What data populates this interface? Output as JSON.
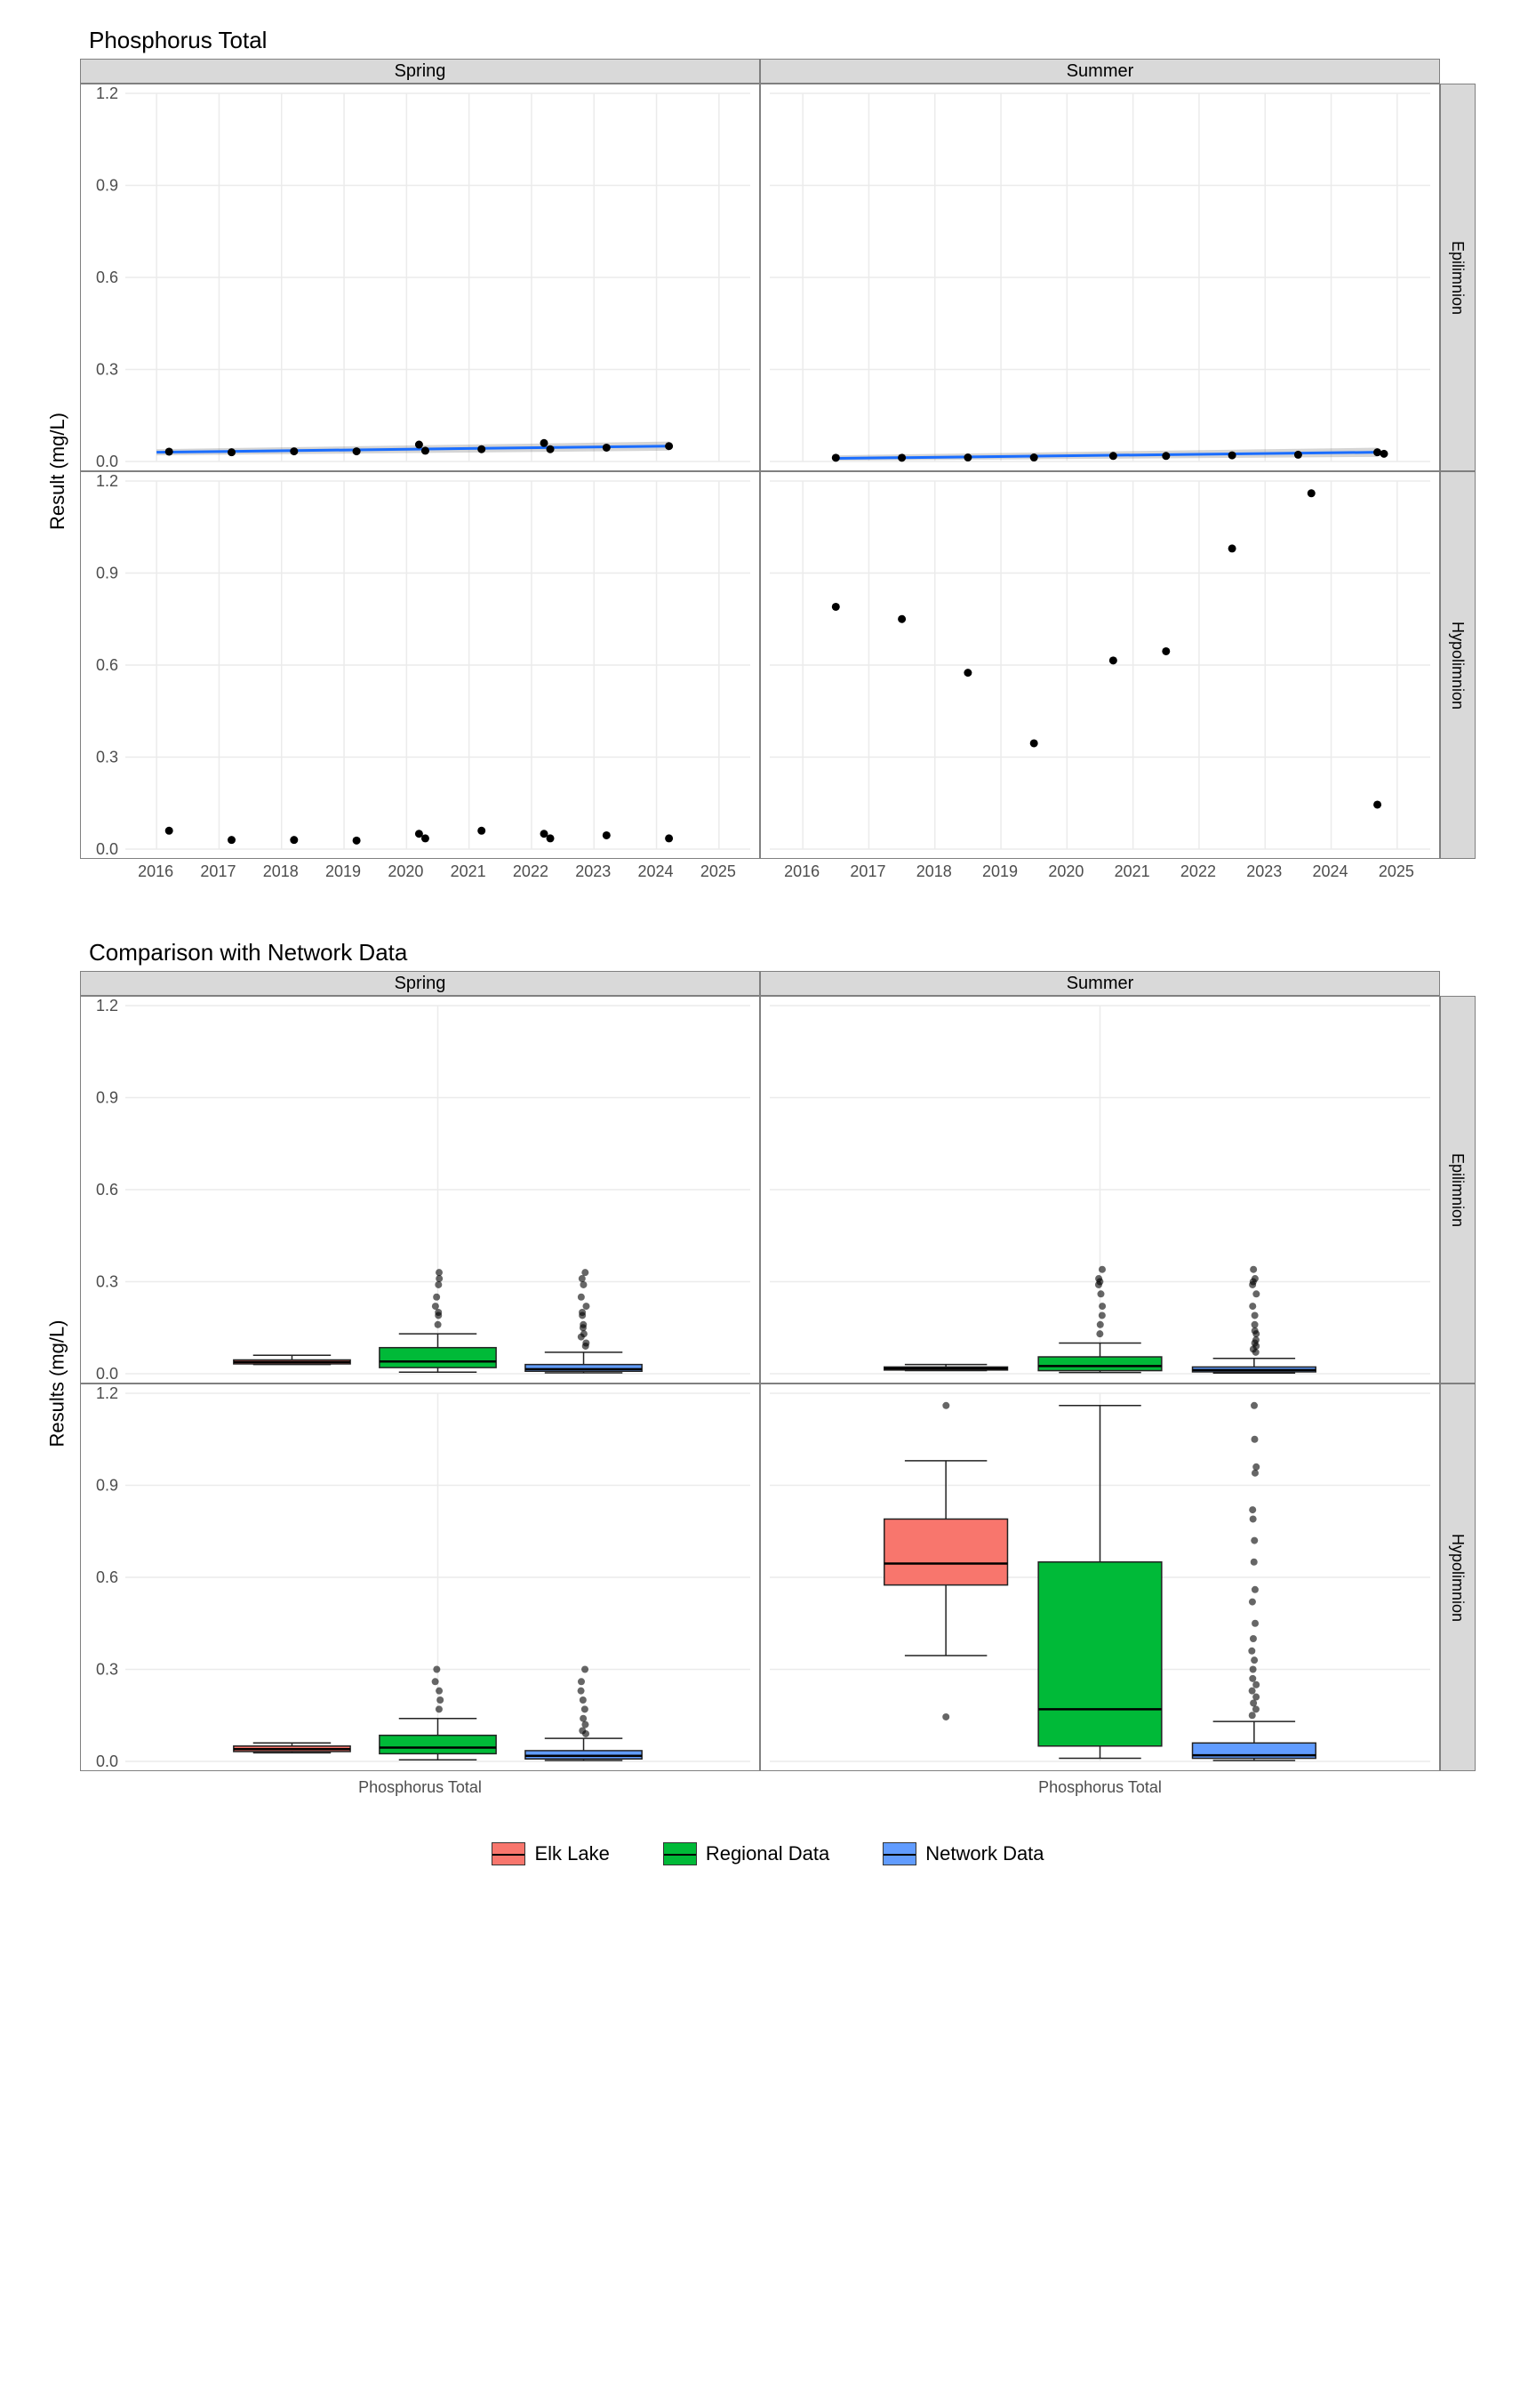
{
  "colors": {
    "elk": "#f8766d",
    "regional": "#00ba38",
    "network": "#619cff",
    "trend": "#1a6dff",
    "ribbon": "#888888",
    "strip_bg": "#d9d9d9",
    "strip_border": "#808080",
    "grid": "#ebebeb",
    "bg": "#ffffff",
    "text": "#000000"
  },
  "upper": {
    "title": "Phosphorus Total",
    "ylabel": "Result (mg/L)",
    "ylim": [
      0,
      1.2
    ],
    "yticks": [
      0.0,
      0.3,
      0.6,
      0.9,
      1.2
    ],
    "xlim": [
      2015.5,
      2025.5
    ],
    "xticks": [
      2016,
      2017,
      2018,
      2019,
      2020,
      2021,
      2022,
      2023,
      2024,
      2025
    ],
    "cols": [
      "Spring",
      "Summer"
    ],
    "rows": [
      "Epilimnion",
      "Hypolimnion"
    ],
    "panels": {
      "spring_epi": {
        "trend": {
          "x": [
            2016,
            2024.2
          ],
          "y": [
            0.03,
            0.05
          ]
        },
        "ribbon": {
          "x": [
            2016,
            2024.2
          ],
          "ylo": [
            0.02,
            0.035
          ],
          "yhi": [
            0.04,
            0.065
          ]
        },
        "points": [
          [
            2016.2,
            0.032
          ],
          [
            2017.2,
            0.03
          ],
          [
            2018.2,
            0.033
          ],
          [
            2019.2,
            0.033
          ],
          [
            2020.2,
            0.055
          ],
          [
            2020.3,
            0.035
          ],
          [
            2021.2,
            0.04
          ],
          [
            2022.2,
            0.06
          ],
          [
            2022.3,
            0.04
          ],
          [
            2023.2,
            0.045
          ],
          [
            2024.2,
            0.05
          ]
        ]
      },
      "summer_epi": {
        "trend": {
          "x": [
            2016.5,
            2024.7
          ],
          "y": [
            0.01,
            0.03
          ]
        },
        "ribbon": {
          "x": [
            2016.5,
            2024.7
          ],
          "ylo": [
            0.003,
            0.015
          ],
          "yhi": [
            0.02,
            0.045
          ]
        },
        "points": [
          [
            2016.5,
            0.012
          ],
          [
            2017.5,
            0.012
          ],
          [
            2018.5,
            0.013
          ],
          [
            2019.5,
            0.013
          ],
          [
            2020.7,
            0.018
          ],
          [
            2021.5,
            0.018
          ],
          [
            2022.5,
            0.02
          ],
          [
            2023.5,
            0.022
          ],
          [
            2024.7,
            0.03
          ],
          [
            2024.8,
            0.025
          ]
        ]
      },
      "spring_hypo": {
        "points": [
          [
            2016.2,
            0.06
          ],
          [
            2017.2,
            0.03
          ],
          [
            2018.2,
            0.03
          ],
          [
            2019.2,
            0.028
          ],
          [
            2020.2,
            0.05
          ],
          [
            2020.3,
            0.035
          ],
          [
            2021.2,
            0.06
          ],
          [
            2022.2,
            0.05
          ],
          [
            2022.3,
            0.035
          ],
          [
            2023.2,
            0.045
          ],
          [
            2024.2,
            0.035
          ]
        ]
      },
      "summer_hypo": {
        "points": [
          [
            2016.5,
            0.79
          ],
          [
            2017.5,
            0.75
          ],
          [
            2018.5,
            0.575
          ],
          [
            2019.5,
            0.345
          ],
          [
            2020.7,
            0.615
          ],
          [
            2021.5,
            0.645
          ],
          [
            2022.5,
            0.98
          ],
          [
            2023.7,
            1.16
          ],
          [
            2024.7,
            0.145
          ]
        ]
      }
    }
  },
  "lower": {
    "title": "Comparison with Network Data",
    "ylabel": "Results (mg/L)",
    "ylim": [
      0,
      1.2
    ],
    "yticks": [
      0.0,
      0.3,
      0.6,
      0.9,
      1.2
    ],
    "xlabel_each": "Phosphorus Total",
    "cols": [
      "Spring",
      "Summer"
    ],
    "rows": [
      "Epilimnion",
      "Hypolimnion"
    ],
    "groups": [
      "Elk Lake",
      "Regional Data",
      "Network Data"
    ],
    "panels": {
      "spring_epi": {
        "boxes": [
          {
            "fill": "elk",
            "q1": 0.032,
            "med": 0.038,
            "q3": 0.045,
            "lo": 0.03,
            "hi": 0.06,
            "out": []
          },
          {
            "fill": "regional",
            "q1": 0.02,
            "med": 0.04,
            "q3": 0.085,
            "lo": 0.005,
            "hi": 0.13,
            "out": [
              0.16,
              0.19,
              0.2,
              0.22,
              0.25,
              0.29,
              0.31,
              0.33
            ]
          },
          {
            "fill": "network",
            "q1": 0.008,
            "med": 0.015,
            "q3": 0.03,
            "lo": 0.003,
            "hi": 0.07,
            "out": [
              0.09,
              0.1,
              0.12,
              0.13,
              0.15,
              0.16,
              0.19,
              0.2,
              0.22,
              0.25,
              0.29,
              0.31,
              0.33
            ]
          }
        ]
      },
      "summer_epi": {
        "boxes": [
          {
            "fill": "elk",
            "q1": 0.012,
            "med": 0.017,
            "q3": 0.022,
            "lo": 0.01,
            "hi": 0.03,
            "out": []
          },
          {
            "fill": "regional",
            "q1": 0.01,
            "med": 0.025,
            "q3": 0.055,
            "lo": 0.004,
            "hi": 0.1,
            "out": [
              0.13,
              0.16,
              0.19,
              0.22,
              0.26,
              0.29,
              0.3,
              0.31,
              0.34
            ]
          },
          {
            "fill": "network",
            "q1": 0.006,
            "med": 0.012,
            "q3": 0.022,
            "lo": 0.002,
            "hi": 0.05,
            "out": [
              0.07,
              0.08,
              0.09,
              0.1,
              0.11,
              0.13,
              0.14,
              0.16,
              0.19,
              0.22,
              0.26,
              0.29,
              0.3,
              0.31,
              0.34
            ]
          }
        ]
      },
      "spring_hypo": {
        "boxes": [
          {
            "fill": "elk",
            "q1": 0.032,
            "med": 0.04,
            "q3": 0.05,
            "lo": 0.028,
            "hi": 0.06,
            "out": []
          },
          {
            "fill": "regional",
            "q1": 0.025,
            "med": 0.045,
            "q3": 0.085,
            "lo": 0.005,
            "hi": 0.14,
            "out": [
              0.17,
              0.2,
              0.23,
              0.26,
              0.3
            ]
          },
          {
            "fill": "network",
            "q1": 0.008,
            "med": 0.018,
            "q3": 0.035,
            "lo": 0.003,
            "hi": 0.075,
            "out": [
              0.09,
              0.1,
              0.12,
              0.14,
              0.17,
              0.2,
              0.23,
              0.26,
              0.3
            ]
          }
        ]
      },
      "summer_hypo": {
        "boxes": [
          {
            "fill": "elk",
            "q1": 0.575,
            "med": 0.645,
            "q3": 0.79,
            "lo": 0.345,
            "hi": 0.98,
            "out": [
              1.16,
              0.145
            ]
          },
          {
            "fill": "regional",
            "q1": 0.05,
            "med": 0.17,
            "q3": 0.65,
            "lo": 0.01,
            "hi": 1.16,
            "out": []
          },
          {
            "fill": "network",
            "q1": 0.01,
            "med": 0.02,
            "q3": 0.06,
            "lo": 0.003,
            "hi": 0.13,
            "out": [
              0.15,
              0.17,
              0.19,
              0.21,
              0.23,
              0.25,
              0.27,
              0.3,
              0.33,
              0.36,
              0.4,
              0.45,
              0.52,
              0.56,
              0.65,
              0.72,
              0.79,
              0.82,
              0.94,
              0.96,
              1.05,
              1.16
            ]
          }
        ]
      }
    }
  },
  "legend": {
    "items": [
      {
        "key": "elk",
        "label": "Elk Lake"
      },
      {
        "key": "regional",
        "label": "Regional Data"
      },
      {
        "key": "network",
        "label": "Network Data"
      }
    ]
  }
}
